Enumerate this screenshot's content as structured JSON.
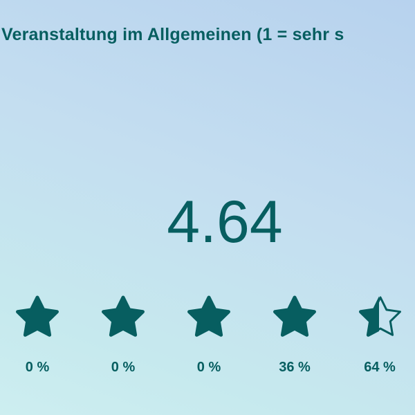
{
  "title": "Veranstaltung im Allgemeinen (1 = sehr s",
  "average": "4.64",
  "ratings": [
    {
      "percent": "0 %"
    },
    {
      "percent": "0 %"
    },
    {
      "percent": "0 %"
    },
    {
      "percent": "36 %"
    },
    {
      "percent": "64 %"
    }
  ]
}
